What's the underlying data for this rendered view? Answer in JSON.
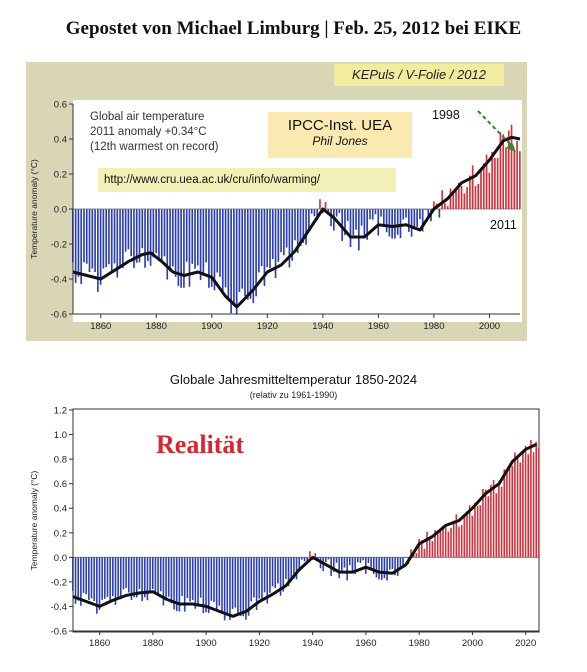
{
  "header": "Gepostet von Michael Limburg | Feb. 25, 2012 bei EIKE",
  "top_chart": {
    "credit": "KEPuls / V-Folie / 2012",
    "legend_lines": [
      "Global air temperature",
      "2011 anomaly +0.34°C",
      "(12th warmest on record)"
    ],
    "ipcc_label": "IPCC-Inst. UEA",
    "ipcc_author": "Phil Jones",
    "url": "http://www.cru.uea.ac.uk/cru/info/warming/",
    "annotation_1998": "1998",
    "annotation_2011": "2011"
  },
  "bottom_chart": {
    "title": "Globale Jahresmitteltemperatur 1850-2024",
    "subtitle": "(relativ zu 1961-1990)",
    "stamp": "Realität"
  },
  "colors": {
    "negative": "#2b3fb4",
    "positive": "#d4303a",
    "smooth": "#111111",
    "credit_bg": "#f2ec9e",
    "panel_bg": "#d9d6b5",
    "stamp": "#d7262e"
  },
  "chart_data": [
    {
      "type": "bar",
      "title": "",
      "xlabel": "",
      "ylabel": "Temperature anomaly (°C)",
      "xlim": [
        1850,
        2011
      ],
      "ylim": [
        -0.6,
        0.6
      ],
      "xticks": [
        1860,
        1880,
        1900,
        1920,
        1940,
        1960,
        1980,
        2000
      ],
      "yticks": [
        -0.6,
        -0.4,
        -0.2,
        0.0,
        0.2,
        0.4,
        0.6
      ],
      "ytick_labels": [
        "-0.6",
        "-0.4",
        "-0.2",
        "0.0",
        "0.2",
        "0.4",
        "0.6"
      ],
      "smooth_x": [
        1850,
        1855,
        1860,
        1865,
        1870,
        1875,
        1878,
        1882,
        1886,
        1890,
        1895,
        1900,
        1905,
        1909,
        1915,
        1920,
        1925,
        1930,
        1935,
        1940,
        1944,
        1950,
        1955,
        1960,
        1965,
        1970,
        1975,
        1980,
        1985,
        1990,
        1995,
        2000,
        2005,
        2008,
        2011
      ],
      "smooth_y": [
        -0.36,
        -0.38,
        -0.4,
        -0.35,
        -0.3,
        -0.26,
        -0.25,
        -0.3,
        -0.36,
        -0.38,
        -0.36,
        -0.39,
        -0.5,
        -0.56,
        -0.46,
        -0.36,
        -0.32,
        -0.24,
        -0.12,
        0.0,
        -0.05,
        -0.16,
        -0.16,
        -0.09,
        -0.1,
        -0.09,
        -0.12,
        0.0,
        0.06,
        0.15,
        0.19,
        0.28,
        0.39,
        0.41,
        0.4
      ]
    },
    {
      "type": "bar",
      "title": "Globale Jahresmitteltemperatur 1850-2024",
      "xlabel": "",
      "ylabel": "Temperature anomaly (°C)",
      "xlim": [
        1850,
        2025
      ],
      "ylim": [
        -0.6,
        1.2
      ],
      "xticks": [
        1860,
        1880,
        1900,
        1920,
        1940,
        1960,
        1980,
        2000,
        2020
      ],
      "yticks": [
        -0.6,
        -0.4,
        -0.2,
        0.0,
        0.2,
        0.4,
        0.6,
        0.8,
        1.0,
        1.2
      ],
      "ytick_labels": [
        "-0.6",
        "-0.4",
        "-0.2",
        "0.0",
        "0.2",
        "0.4",
        "0.6",
        "0.8",
        "1.0",
        "1.2"
      ],
      "smooth_x": [
        1850,
        1855,
        1860,
        1865,
        1870,
        1875,
        1880,
        1885,
        1890,
        1895,
        1900,
        1905,
        1910,
        1915,
        1920,
        1925,
        1930,
        1935,
        1940,
        1945,
        1950,
        1955,
        1960,
        1965,
        1970,
        1975,
        1980,
        1985,
        1990,
        1995,
        2000,
        2005,
        2010,
        2015,
        2020,
        2024
      ],
      "smooth_y": [
        -0.32,
        -0.36,
        -0.4,
        -0.35,
        -0.31,
        -0.29,
        -0.28,
        -0.34,
        -0.38,
        -0.38,
        -0.4,
        -0.44,
        -0.48,
        -0.44,
        -0.36,
        -0.3,
        -0.23,
        -0.1,
        0.0,
        -0.06,
        -0.12,
        -0.12,
        -0.08,
        -0.12,
        -0.13,
        -0.06,
        0.11,
        0.17,
        0.26,
        0.3,
        0.4,
        0.52,
        0.6,
        0.78,
        0.88,
        0.92
      ]
    }
  ]
}
